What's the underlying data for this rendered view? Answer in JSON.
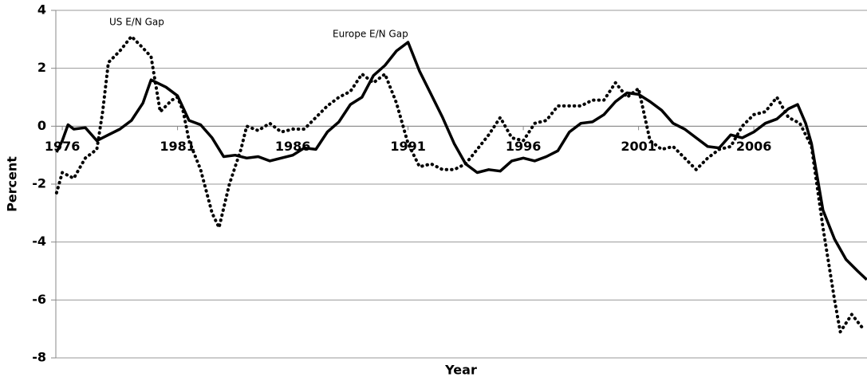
{
  "chart_data": {
    "type": "line",
    "x_label": "Year",
    "y_label": "Percent",
    "annotations": [
      "US E/N Gap",
      "Europe E/N Gap"
    ],
    "series": [
      {
        "name": "Europe E/N Gap",
        "color": "#000000",
        "style": "solid",
        "x": [
          1975.75,
          1976.0,
          1976.25,
          1976.5,
          1977.0,
          1977.5,
          1978.0,
          1978.5,
          1979.0,
          1979.5,
          1979.85,
          1980.5,
          1981.0,
          1981.5,
          1982.0,
          1982.5,
          1983.0,
          1983.5,
          1984.0,
          1984.5,
          1985.0,
          1985.5,
          1986.0,
          1986.5,
          1987.0,
          1987.5,
          1988.0,
          1988.5,
          1989.0,
          1989.5,
          1990.0,
          1990.5,
          1991.0,
          1991.5,
          1992.0,
          1992.5,
          1993.0,
          1993.5,
          1994.0,
          1994.5,
          1995.0,
          1995.5,
          1996.0,
          1996.5,
          1997.0,
          1997.5,
          1998.0,
          1998.5,
          1999.0,
          1999.5,
          2000.0,
          2000.5,
          2001.0,
          2001.5,
          2002.0,
          2002.5,
          2003.0,
          2003.5,
          2004.0,
          2004.5,
          2005.0,
          2005.5,
          2006.0,
          2006.5,
          2007.0,
          2007.5,
          2007.9,
          2008.25,
          2008.5,
          2009.0,
          2009.5,
          2010.0,
          2010.5,
          2010.9
        ],
        "values": [
          -0.9,
          -0.5,
          0.05,
          -0.1,
          -0.05,
          -0.5,
          -0.3,
          -0.1,
          0.2,
          0.8,
          1.6,
          1.35,
          1.05,
          0.2,
          0.05,
          -0.4,
          -1.05,
          -1.0,
          -1.1,
          -1.05,
          -1.2,
          -1.1,
          -1.0,
          -0.75,
          -0.8,
          -0.2,
          0.15,
          0.75,
          1.0,
          1.75,
          2.1,
          2.6,
          2.9,
          1.9,
          1.1,
          0.3,
          -0.6,
          -1.3,
          -1.6,
          -1.5,
          -1.55,
          -1.2,
          -1.1,
          -1.2,
          -1.05,
          -0.85,
          -0.2,
          0.1,
          0.15,
          0.4,
          0.85,
          1.15,
          1.1,
          0.85,
          0.55,
          0.1,
          -0.1,
          -0.4,
          -0.7,
          -0.75,
          -0.3,
          -0.4,
          -0.2,
          0.1,
          0.25,
          0.6,
          0.75,
          0.1,
          -0.6,
          -2.9,
          -3.9,
          -4.6,
          -5.0,
          -5.3
        ]
      },
      {
        "name": "US E/N Gap",
        "color": "#000000",
        "style": "dotted",
        "x": [
          1975.75,
          1976.0,
          1976.5,
          1977.0,
          1977.5,
          1977.75,
          1978.0,
          1978.5,
          1979.0,
          1979.5,
          1979.85,
          1980.25,
          1980.75,
          1981.0,
          1981.25,
          1981.5,
          1982.0,
          1982.5,
          1982.8,
          1983.25,
          1983.75,
          1984.0,
          1984.5,
          1985.0,
          1985.5,
          1986.0,
          1986.5,
          1987.0,
          1987.5,
          1988.0,
          1988.5,
          1989.0,
          1989.5,
          1990.0,
          1990.5,
          1991.0,
          1991.5,
          1992.0,
          1992.5,
          1993.0,
          1993.5,
          1994.0,
          1994.5,
          1995.0,
          1995.5,
          1996.0,
          1996.5,
          1997.0,
          1997.5,
          1998.0,
          1998.5,
          1999.0,
          1999.5,
          2000.0,
          2000.5,
          2001.0,
          2001.5,
          2002.0,
          2002.5,
          2003.0,
          2003.5,
          2004.0,
          2004.5,
          2005.0,
          2005.5,
          2006.0,
          2006.5,
          2007.0,
          2007.5,
          2008.0,
          2008.5,
          2009.0,
          2009.5,
          2009.75,
          2010.25,
          2010.75
        ],
        "values": [
          -2.3,
          -1.6,
          -1.8,
          -1.1,
          -0.8,
          0.5,
          2.2,
          2.6,
          3.1,
          2.7,
          2.4,
          0.5,
          0.9,
          1.0,
          0.5,
          -0.5,
          -1.5,
          -3.0,
          -3.5,
          -2.0,
          -0.8,
          0.0,
          -0.15,
          0.1,
          -0.2,
          -0.1,
          -0.1,
          0.3,
          0.7,
          1.0,
          1.2,
          1.8,
          1.5,
          1.8,
          0.8,
          -0.6,
          -1.4,
          -1.3,
          -1.5,
          -1.5,
          -1.3,
          -0.8,
          -0.3,
          0.3,
          -0.4,
          -0.5,
          0.1,
          0.2,
          0.7,
          0.7,
          0.7,
          0.9,
          0.9,
          1.5,
          1.0,
          1.3,
          -0.5,
          -0.8,
          -0.7,
          -1.1,
          -1.5,
          -1.1,
          -0.8,
          -0.7,
          0.0,
          0.4,
          0.5,
          1.0,
          0.3,
          0.1,
          -0.7,
          -3.5,
          -6.0,
          -7.1,
          -6.5,
          -7.0
        ]
      }
    ],
    "xlim": [
      1975.72,
      2010.91
    ],
    "xticks": [
      1976,
      1981,
      1986,
      1991,
      1996,
      2001,
      2006
    ],
    "ylim": [
      -8,
      4
    ],
    "yticks": [
      -8,
      -6,
      -4,
      -2,
      0,
      2,
      4
    ],
    "grid": true
  }
}
